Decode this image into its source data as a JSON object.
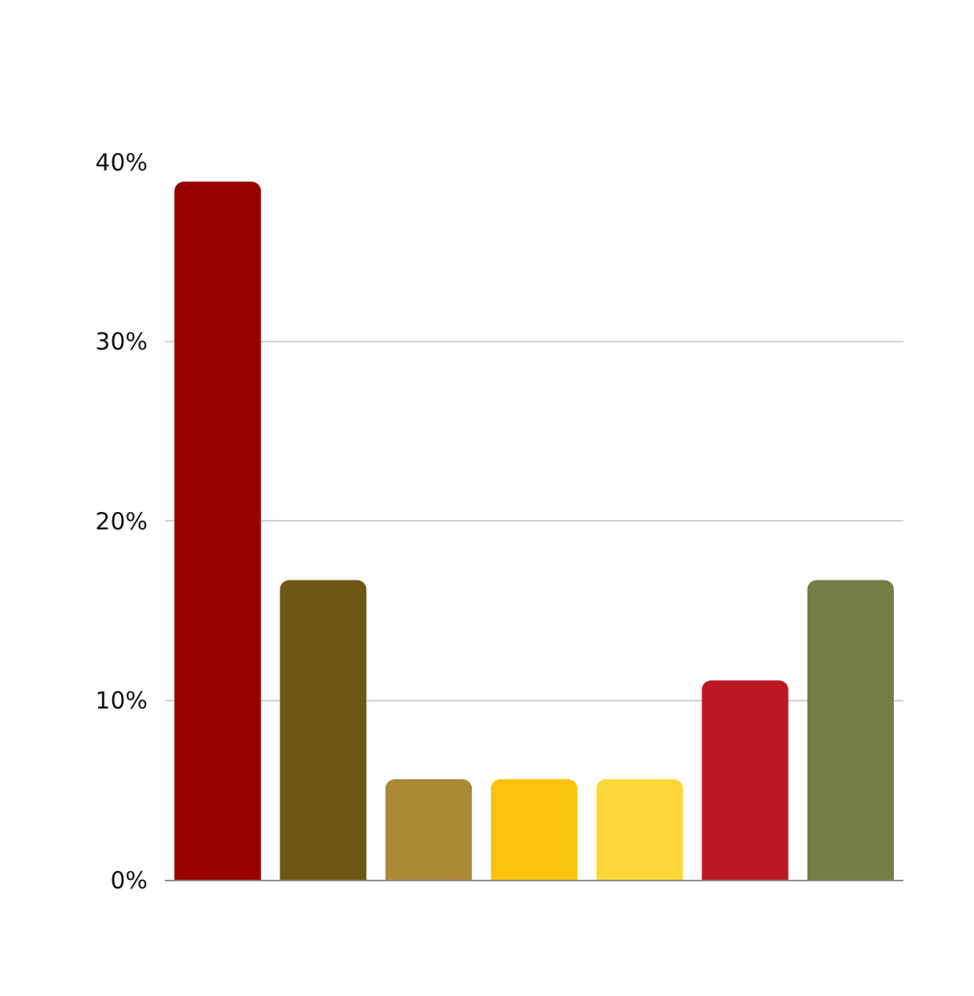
{
  "chart_data": {
    "type": "bar",
    "categories": [
      null,
      null,
      null,
      null,
      null,
      null,
      null
    ],
    "values": [
      38.9,
      16.7,
      5.6,
      5.6,
      5.6,
      11.1,
      16.7
    ],
    "colors": [
      "#990000",
      "#6f5614",
      "#aa8a33",
      "#fbc30c",
      "#fdd73a",
      "#bb1823",
      "#767d46"
    ],
    "ylim": [
      0,
      40
    ],
    "yticks": [
      {
        "value": 0,
        "label": "0%"
      },
      {
        "value": 10,
        "label": "10%"
      },
      {
        "value": 20,
        "label": "20%"
      },
      {
        "value": 30,
        "label": "30%"
      },
      {
        "value": 40,
        "label": "40%"
      }
    ],
    "grid": "y",
    "tick_labels": "y"
  }
}
